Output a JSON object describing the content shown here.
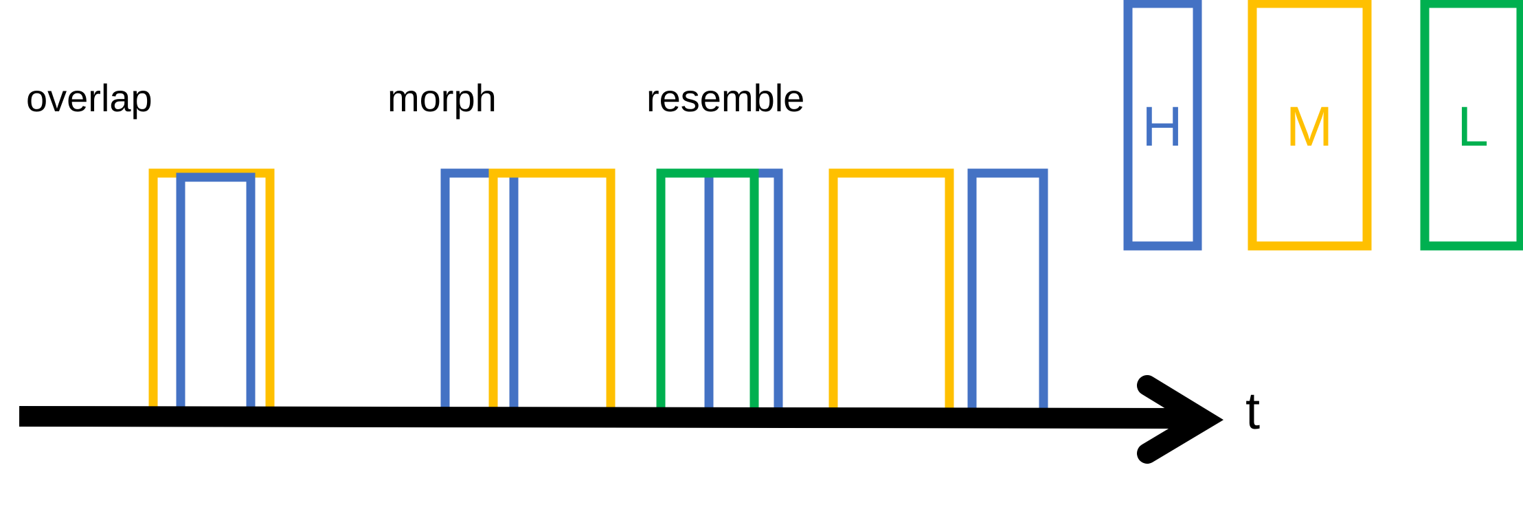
{
  "colors": {
    "H": "#4472C4",
    "M": "#FFC000",
    "L": "#00B050",
    "axis": "#000000"
  },
  "axis": {
    "label": "t"
  },
  "groups": [
    {
      "label": "overlap"
    },
    {
      "label": "morph"
    },
    {
      "label": "resemble"
    }
  ],
  "legend": [
    {
      "letter": "H",
      "color": "#4472C4"
    },
    {
      "letter": "M",
      "color": "#FFC000"
    },
    {
      "letter": "L",
      "color": "#00B050"
    }
  ]
}
